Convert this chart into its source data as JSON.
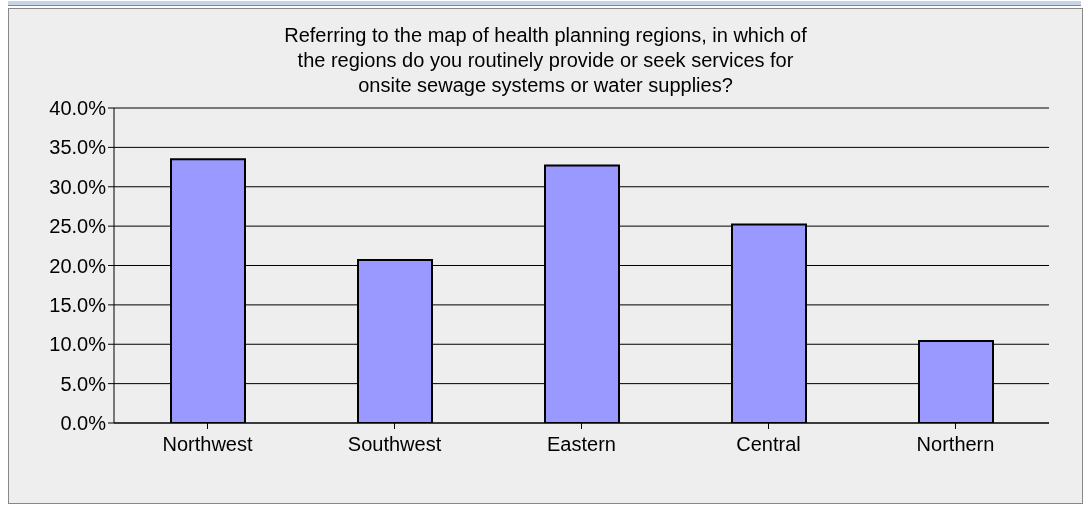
{
  "chart_data": {
    "type": "bar",
    "title": "Referring to the map of health planning regions, in which of the regions do you routinely provide or seek services for onsite sewage systems or water supplies?",
    "categories": [
      "Northwest",
      "Southwest",
      "Eastern",
      "Central",
      "Northern"
    ],
    "values": [
      33.5,
      20.7,
      32.7,
      25.2,
      10.4
    ],
    "color": "#9999ff",
    "ylim": [
      0,
      40
    ],
    "yticks": [
      {
        "value": 0,
        "label": "0.0%"
      },
      {
        "value": 5,
        "label": "5.0%"
      },
      {
        "value": 10,
        "label": "10.0%"
      },
      {
        "value": 15,
        "label": "15.0%"
      },
      {
        "value": 20,
        "label": "20.0%"
      },
      {
        "value": 25,
        "label": "25.0%"
      },
      {
        "value": 30,
        "label": "30.0%"
      },
      {
        "value": 35,
        "label": "35.0%"
      },
      {
        "value": 40,
        "label": "40.0%"
      }
    ],
    "grid": "y",
    "legend": false
  }
}
